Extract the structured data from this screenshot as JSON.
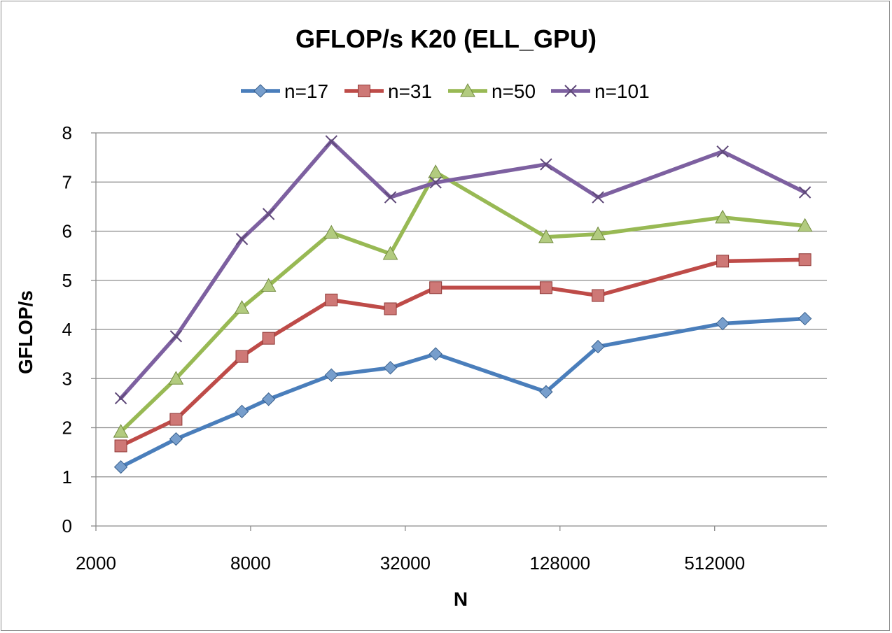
{
  "chart_data": {
    "type": "line",
    "title": "GFLOP/s K20 (ELL_GPU)",
    "xlabel": "N",
    "ylabel": "GFLOP/s",
    "x_scale": "log2",
    "xlim": [
      2000,
      1400000
    ],
    "ylim": [
      0,
      8
    ],
    "x_ticks": [
      2000,
      8000,
      32000,
      128000,
      512000
    ],
    "x_tick_labels": [
      "2000",
      "8000",
      "32000",
      "128000",
      "512000"
    ],
    "y_ticks": [
      0,
      1,
      2,
      3,
      4,
      5,
      6,
      7,
      8
    ],
    "y_tick_labels": [
      "0",
      "1",
      "2",
      "3",
      "4",
      "5",
      "6",
      "7",
      "8"
    ],
    "grid": "horizontal",
    "legend_position": "top",
    "x": [
      2500,
      4100,
      7400,
      9400,
      16500,
      28000,
      42000,
      113000,
      180000,
      550000,
      1150000
    ],
    "series": [
      {
        "name": "n=17",
        "color": "#4a7ebb",
        "marker": "diamond",
        "values": [
          1.2,
          1.77,
          2.33,
          2.58,
          3.07,
          3.22,
          3.5,
          2.73,
          3.65,
          4.12,
          4.22
        ]
      },
      {
        "name": "n=31",
        "color": "#be4b48",
        "marker": "square",
        "values": [
          1.63,
          2.17,
          3.45,
          3.82,
          4.6,
          4.42,
          4.85,
          4.85,
          4.69,
          5.39,
          5.42
        ]
      },
      {
        "name": "n=50",
        "color": "#98b954",
        "marker": "triangle",
        "values": [
          1.92,
          3.0,
          4.44,
          4.89,
          5.97,
          5.54,
          7.2,
          5.88,
          5.94,
          6.28,
          6.11
        ]
      },
      {
        "name": "n=101",
        "color": "#7d60a0",
        "marker": "x",
        "values": [
          2.6,
          3.86,
          5.84,
          6.35,
          7.83,
          6.69,
          6.99,
          7.36,
          6.69,
          7.62,
          6.79
        ]
      }
    ]
  }
}
